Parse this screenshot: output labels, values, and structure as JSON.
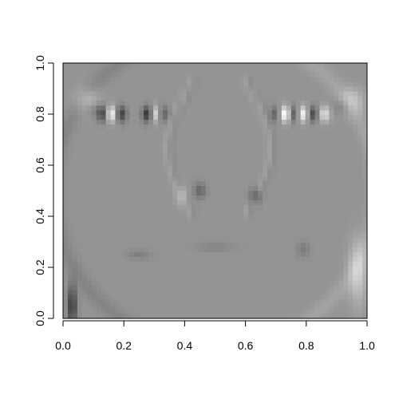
{
  "chart_data": {
    "type": "heatmap",
    "title": "",
    "xlabel": "",
    "ylabel": "",
    "xlim": [
      0,
      1
    ],
    "ylim": [
      0,
      1
    ],
    "xticks": [
      0.0,
      0.2,
      0.4,
      0.6,
      0.8,
      1.0
    ],
    "yticks": [
      0.0,
      0.2,
      0.4,
      0.6,
      0.8,
      1.0
    ],
    "xtick_labels": [
      "0.0",
      "0.2",
      "0.4",
      "0.6",
      "0.8",
      "1.0"
    ],
    "ytick_labels": [
      "0.0",
      "0.2",
      "0.4",
      "0.6",
      "0.8",
      "1.0"
    ],
    "colormap": "grayscale",
    "grid": false,
    "image_description_features": [
      {
        "feature": "left-eye",
        "center": [
          0.2,
          0.8
        ],
        "contrast": "high"
      },
      {
        "feature": "right-eye",
        "center": [
          0.76,
          0.8
        ],
        "contrast": "high"
      },
      {
        "feature": "nose",
        "center": [
          0.5,
          0.55
        ],
        "contrast": "medium"
      },
      {
        "feature": "mouth",
        "center": [
          0.5,
          0.27
        ],
        "contrast": "low"
      }
    ],
    "background_level": 0.58
  }
}
